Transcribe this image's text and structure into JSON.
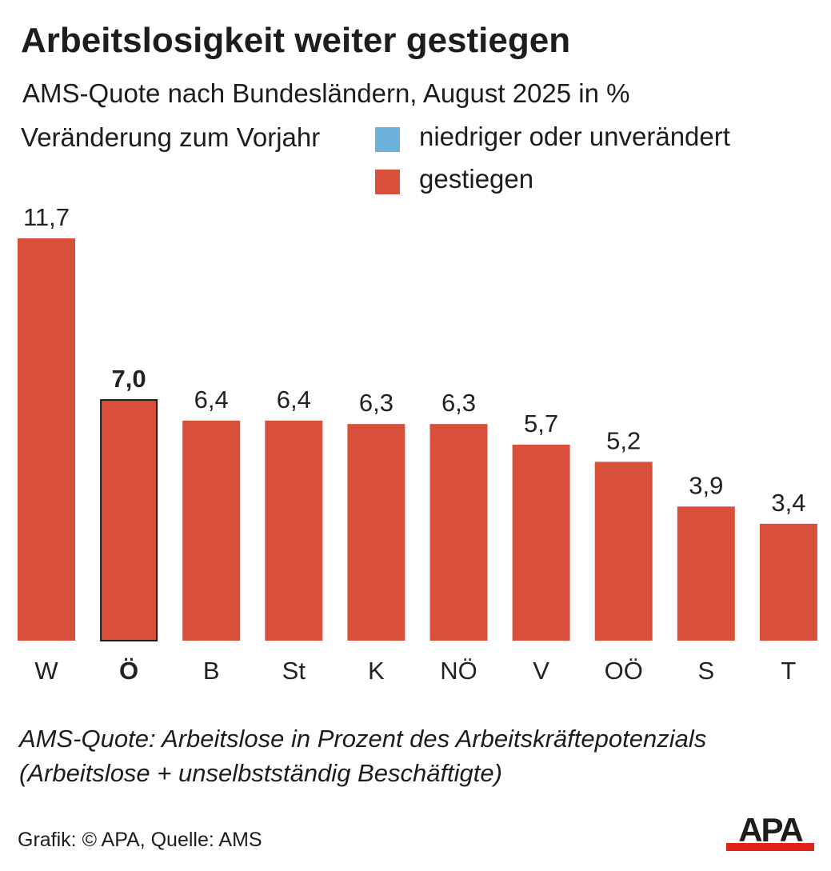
{
  "title": "Arbeitslosigkeit weiter gestiegen",
  "subtitle": "AMS-Quote nach Bundesländern, August 2025 in %",
  "legend": {
    "heading": "Veränderung zum Vorjahr",
    "items": [
      {
        "label": "niedriger oder unverändert",
        "color": "#6ab0d8"
      },
      {
        "label": "gestiegen",
        "color": "#d9503a"
      }
    ]
  },
  "chart_data": {
    "type": "bar",
    "title": "Arbeitslosigkeit weiter gestiegen",
    "subtitle": "AMS-Quote nach Bundesländern, August 2025 in %",
    "xlabel": "",
    "ylabel": "",
    "ylim": [
      0,
      11.7
    ],
    "grid": false,
    "legend_position": "top-right",
    "categories": [
      "W",
      "Ö",
      "B",
      "St",
      "K",
      "NÖ",
      "V",
      "OÖ",
      "S",
      "T"
    ],
    "value_labels": [
      "11,7",
      "7,0",
      "6,4",
      "6,4",
      "6,3",
      "6,3",
      "5,7",
      "5,2",
      "3,9",
      "3,4"
    ],
    "values": [
      11.7,
      7.0,
      6.4,
      6.4,
      6.3,
      6.3,
      5.7,
      5.2,
      3.9,
      3.4
    ],
    "highlight": [
      "Ö"
    ],
    "series": [
      {
        "name": "gestiegen",
        "color": "#d9503a"
      }
    ]
  },
  "footnote": {
    "line1": "AMS-Quote: Arbeitslose in Prozent des Arbeitskräftepotenzials",
    "line2": "(Arbeitslose + unselbstständig Beschäftigte)"
  },
  "credit": "Grafik: © APA, Quelle: AMS",
  "logo": {
    "text": "APA",
    "text_color": "#1d1d1b",
    "bar_color": "#e2231a"
  }
}
